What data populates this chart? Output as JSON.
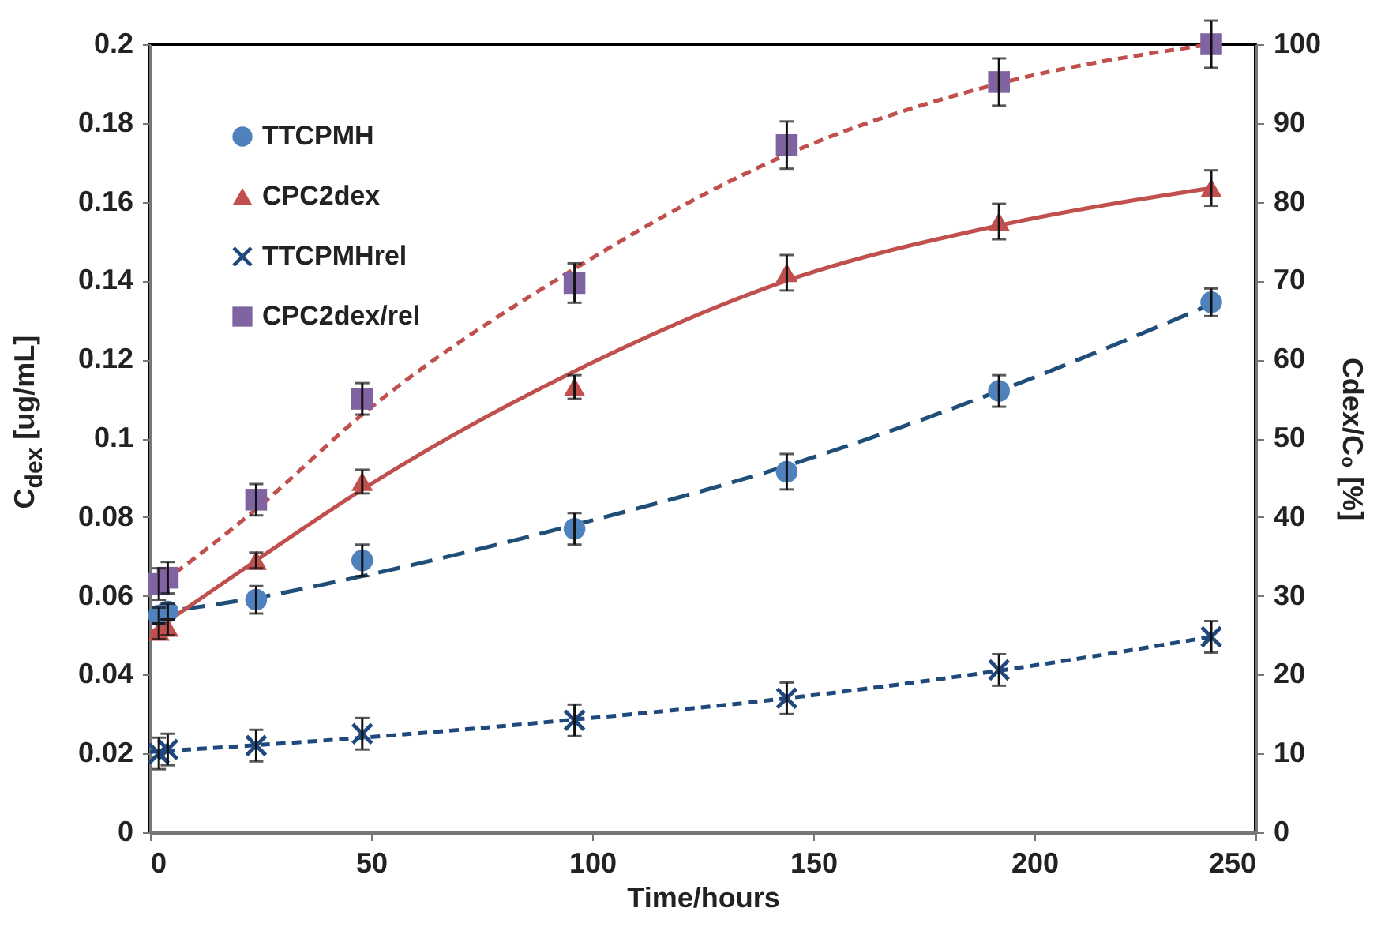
{
  "chart_data": {
    "type": "scatter",
    "xlabel": "Time/hours",
    "ylabel": "C$_{dex}$ [ug/mL]",
    "y2label": "Cdex/C₀ [%]",
    "xlim": [
      0,
      250
    ],
    "xticks": [
      0,
      50,
      100,
      150,
      200,
      250
    ],
    "ylim": [
      0,
      0.2
    ],
    "yticks": [
      0,
      0.02,
      0.04,
      0.06,
      0.08,
      0.1,
      0.12,
      0.14,
      0.16,
      0.18,
      0.2
    ],
    "y2lim": [
      0,
      100
    ],
    "y2ticks": [
      0,
      10,
      20,
      30,
      40,
      50,
      60,
      70,
      80,
      90,
      100
    ],
    "legend": "top left",
    "grid": false,
    "series": [
      {
        "type": "line",
        "color": "#1f4e79",
        "line_style": "dashed",
        "x": [
          0,
          24,
          48,
          96,
          144,
          192,
          240
        ],
        "values": [
          0.0555,
          0.0595,
          0.065,
          0.078,
          0.093,
          0.112,
          0.134
        ]
      },
      {
        "type": "line",
        "color": "#c0504d",
        "line_style": "solid",
        "x": [
          0,
          24,
          48,
          96,
          144,
          192,
          240
        ],
        "values": [
          0.0505,
          0.069,
          0.087,
          0.117,
          0.14,
          0.154,
          0.1635
        ]
      },
      {
        "name": "TTCPMH",
        "color": "#4f81bd",
        "marker": "circle",
        "x": [
          2,
          4,
          24,
          48,
          96,
          144,
          192,
          240
        ],
        "values": [
          0.055,
          0.056,
          0.059,
          0.069,
          0.077,
          0.0915,
          0.112,
          0.1345
        ],
        "errors": [
          0.002,
          0.002,
          0.0035,
          0.004,
          0.004,
          0.0045,
          0.004,
          0.0035
        ]
      },
      {
        "name": "CPC2dex",
        "color": "#c0504d",
        "marker": "triangle",
        "x": [
          2,
          4,
          24,
          48,
          96,
          144,
          192,
          240
        ],
        "values": [
          0.051,
          0.052,
          0.069,
          0.089,
          0.113,
          0.142,
          0.155,
          0.1635
        ],
        "errors": [
          0.002,
          0.002,
          0.002,
          0.003,
          0.003,
          0.0045,
          0.0045,
          0.0045
        ]
      },
      {
        "type": "line",
        "axis": "y2",
        "color": "#1f497d",
        "line_style": "dotted",
        "x": [
          0,
          48,
          96,
          144,
          192,
          240
        ],
        "values": [
          10.2,
          12,
          14.3,
          17,
          20.5,
          24.8
        ]
      },
      {
        "type": "line",
        "axis": "y2",
        "color": "#c0504d",
        "line_style": "dotted",
        "x": [
          0,
          24,
          48,
          96,
          144,
          192,
          240
        ],
        "values": [
          30.5,
          41,
          53,
          71.5,
          86,
          95,
          100
        ]
      },
      {
        "name": "TTCPMHrel",
        "axis": "y2",
        "color": "#1f497d",
        "marker": "cross",
        "x": [
          2,
          4,
          24,
          48,
          96,
          144,
          192,
          240
        ],
        "values": [
          10,
          10.5,
          11,
          12.5,
          14.2,
          17,
          20.6,
          24.8
        ],
        "errors": [
          2,
          2,
          2,
          2,
          2,
          2,
          2,
          2
        ]
      },
      {
        "name": "CPC2dex/rel",
        "axis": "y2",
        "color": "#8064a2",
        "marker": "square",
        "x": [
          2,
          4,
          24,
          48,
          96,
          144,
          192,
          240
        ],
        "values": [
          31.5,
          32.3,
          42.2,
          55,
          69.7,
          87.2,
          95.2,
          100
        ],
        "errors": [
          2,
          2,
          2,
          2,
          2.5,
          3,
          3,
          3
        ]
      }
    ]
  }
}
